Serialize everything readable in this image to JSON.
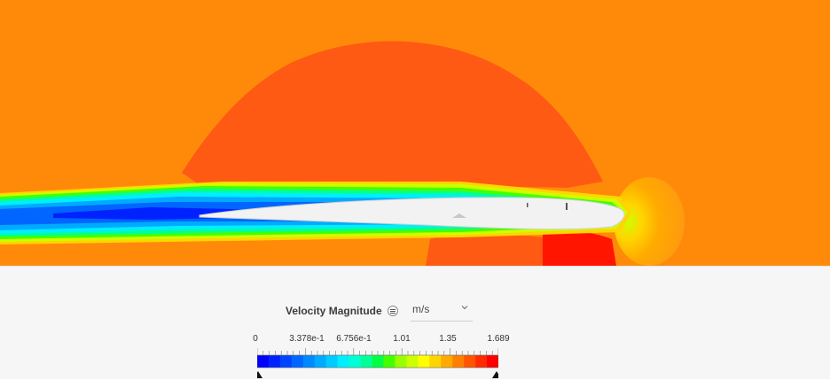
{
  "legend": {
    "field_name": "Velocity Magnitude",
    "info_icon": "info-icon",
    "unit": "m/s",
    "chevron_icon": "chevron-down-icon",
    "min": 0,
    "max": 1.689,
    "tick_labels": [
      "0",
      "3.378e-1",
      "6.756e-1",
      "1.01",
      "1.35",
      "1.689"
    ],
    "min_handle_icon": "triangle-up-icon",
    "max_handle_icon": "triangle-up-icon",
    "colors": [
      "#0000ff",
      "#0022ff",
      "#0044ff",
      "#0066ff",
      "#0088ff",
      "#00aaff",
      "#00ccff",
      "#00eeff",
      "#00ffd5",
      "#00ff99",
      "#00ff44",
      "#44ff00",
      "#99ff00",
      "#ccff00",
      "#ffff00",
      "#ffd500",
      "#ffaa00",
      "#ff8000",
      "#ff5500",
      "#ff2a00",
      "#ff0000"
    ]
  },
  "scene": {
    "background_color": "#ff8a0a",
    "high_pressure_color": "#ff5a14",
    "wing_color": "#f2f2f2"
  }
}
